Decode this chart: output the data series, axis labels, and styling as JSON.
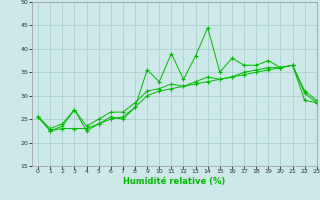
{
  "xlabel": "Humidité relative (%)",
  "xlim": [
    -0.5,
    23
  ],
  "ylim": [
    15,
    50
  ],
  "yticks": [
    15,
    20,
    25,
    30,
    35,
    40,
    45,
    50
  ],
  "xticks": [
    0,
    1,
    2,
    3,
    4,
    5,
    6,
    7,
    8,
    9,
    10,
    11,
    12,
    13,
    14,
    15,
    16,
    17,
    18,
    19,
    20,
    21,
    22,
    23
  ],
  "background_color": "#cce8e8",
  "grid_color": "#aacccc",
  "line_color": "#00bb00",
  "series": [
    [
      25.5,
      22.5,
      23.5,
      27.0,
      22.5,
      24.0,
      25.5,
      25.0,
      27.5,
      35.5,
      33.0,
      39.0,
      33.5,
      38.5,
      44.5,
      35.0,
      38.0,
      36.5,
      36.5,
      37.5,
      36.0,
      36.5,
      30.5,
      28.5
    ],
    [
      25.5,
      23.0,
      24.0,
      27.0,
      23.5,
      25.0,
      26.5,
      26.5,
      28.5,
      31.0,
      31.5,
      32.5,
      32.0,
      33.0,
      34.0,
      33.5,
      34.0,
      35.0,
      35.5,
      36.0,
      36.0,
      36.5,
      31.0,
      29.0
    ],
    [
      25.5,
      22.5,
      23.0,
      23.0,
      23.0,
      24.0,
      25.0,
      25.5,
      27.5,
      30.0,
      31.0,
      31.5,
      32.0,
      32.5,
      33.0,
      33.5,
      34.0,
      34.5,
      35.0,
      35.5,
      36.0,
      36.5,
      29.0,
      28.5
    ]
  ]
}
